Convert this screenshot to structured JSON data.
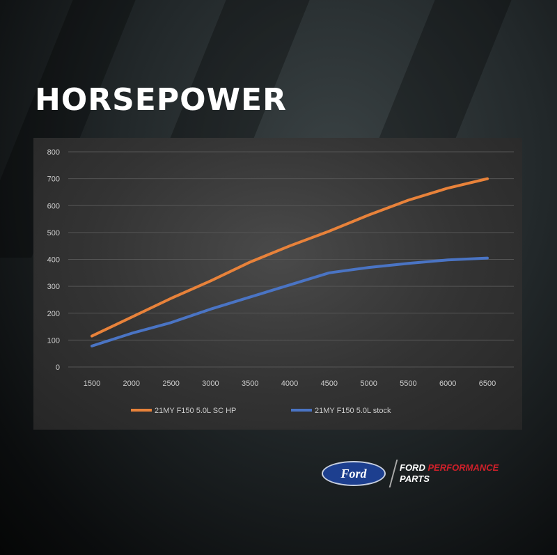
{
  "title": "HORSEPOWER",
  "chart_data": {
    "type": "line",
    "title": "",
    "xlabel": "",
    "ylabel": "",
    "x": [
      1500,
      2000,
      2500,
      3000,
      3500,
      4000,
      4500,
      5000,
      5500,
      6000,
      6500
    ],
    "x_tick_labels": [
      "1500",
      "2000",
      "2500",
      "3000",
      "3500",
      "4000",
      "4500",
      "5000",
      "5500",
      "6000",
      "6500"
    ],
    "y_tick_labels": [
      "0",
      "100",
      "200",
      "300",
      "400",
      "500",
      "600",
      "700",
      "800"
    ],
    "ylim": [
      0,
      800
    ],
    "grid": "horizontal",
    "legend_position": "bottom",
    "series": [
      {
        "name": "21MY F150 5.0L SC HP",
        "color": "#e8823a",
        "values": [
          115,
          185,
          255,
          320,
          390,
          450,
          505,
          565,
          620,
          665,
          700
        ]
      },
      {
        "name": "21MY F150 5.0L stock",
        "color": "#4a74c4",
        "values": [
          78,
          125,
          165,
          215,
          260,
          305,
          350,
          370,
          385,
          398,
          405
        ]
      }
    ]
  },
  "logo": {
    "ford": "Ford",
    "brand_white": "FORD ",
    "brand_red": "PERFORMANCE",
    "brand_line2": "PARTS"
  }
}
